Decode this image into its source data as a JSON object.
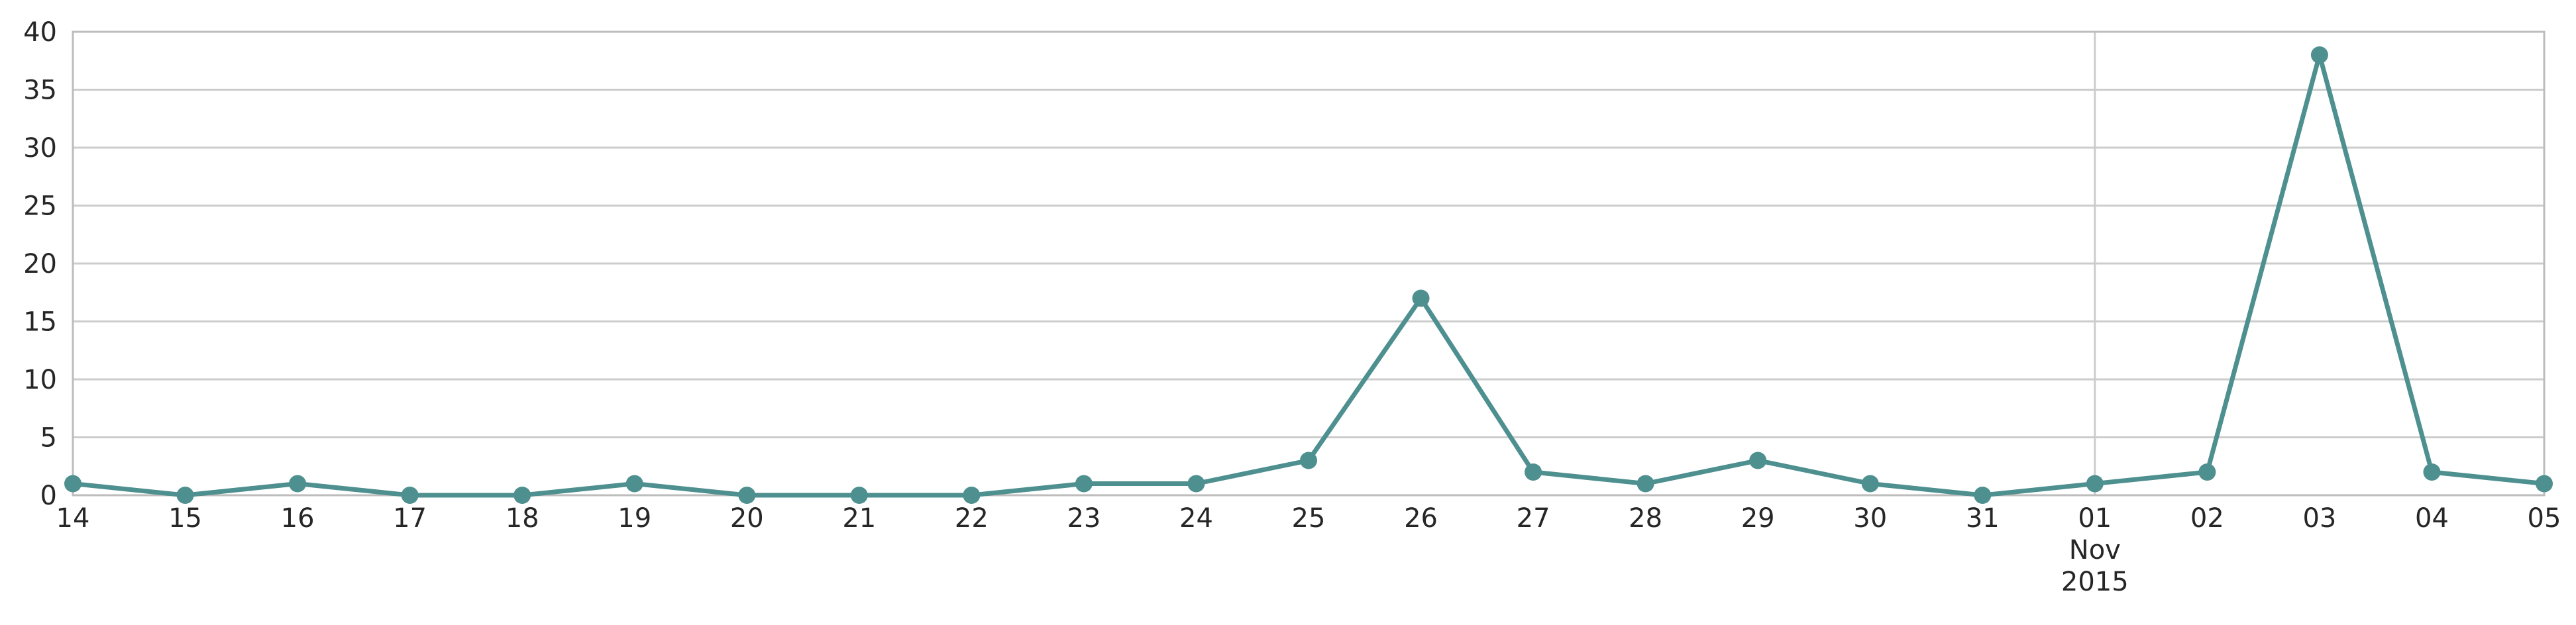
{
  "chart_data": {
    "type": "line",
    "title": "",
    "xlabel": "",
    "ylabel": "",
    "ylim": [
      0,
      40
    ],
    "yticks": [
      0,
      5,
      10,
      15,
      20,
      25,
      30,
      35,
      40
    ],
    "grid": {
      "horizontal": true,
      "vertical_at": [
        "2015-11-01"
      ]
    },
    "x": [
      "2015-10-14",
      "2015-10-15",
      "2015-10-16",
      "2015-10-17",
      "2015-10-18",
      "2015-10-19",
      "2015-10-20",
      "2015-10-21",
      "2015-10-22",
      "2015-10-23",
      "2015-10-24",
      "2015-10-25",
      "2015-10-26",
      "2015-10-27",
      "2015-10-28",
      "2015-10-29",
      "2015-10-30",
      "2015-10-31",
      "2015-11-01",
      "2015-11-02",
      "2015-11-03",
      "2015-11-04",
      "2015-11-05"
    ],
    "x_tick_labels": [
      "14",
      "15",
      "16",
      "17",
      "18",
      "19",
      "20",
      "21",
      "22",
      "23",
      "24",
      "25",
      "26",
      "27",
      "28",
      "29",
      "30",
      "31",
      "01",
      "02",
      "03",
      "04",
      "05"
    ],
    "month_label": {
      "text": "Nov",
      "year": "2015",
      "at": "2015-11-01"
    },
    "series": [
      {
        "values": [
          1,
          0,
          1,
          0,
          0,
          1,
          0,
          0,
          0,
          1,
          1,
          3,
          17,
          2,
          1,
          3,
          1,
          0,
          1,
          2,
          38,
          2,
          1
        ]
      }
    ],
    "colors": {
      "line": "#4e8f8f",
      "marker": "#4e8f8f"
    }
  }
}
